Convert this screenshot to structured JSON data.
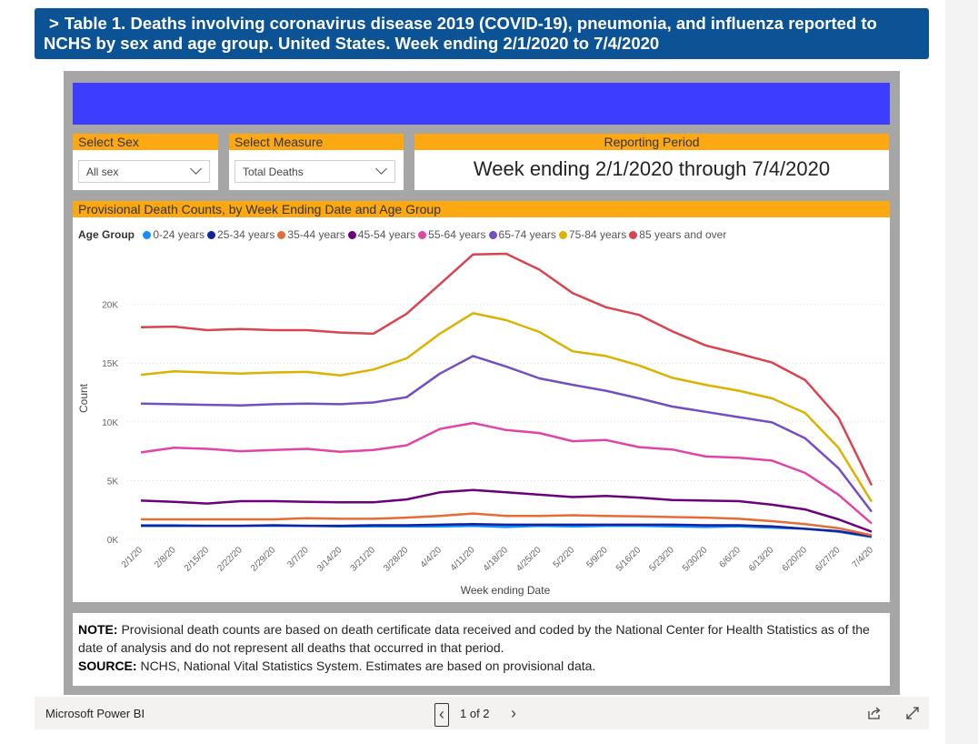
{
  "header": {
    "chevron": ">",
    "title": "Table 1. Deaths involving coronavirus disease 2019 (COVID-19), pneumonia, and influenza reported to NCHS by sex and age group. United States. Week ending 2/1/2020 to 7/4/2020"
  },
  "slicers": {
    "sex": {
      "label": "Select Sex",
      "value": "All sex"
    },
    "measure": {
      "label": "Select Measure",
      "value": "Total Deaths"
    },
    "period": {
      "label": "Reporting Period",
      "value": "Week ending 2/1/2020 through 7/4/2020"
    }
  },
  "chart_title": "Provisional Death Counts, by Week Ending Date and Age Group",
  "chart_data": {
    "type": "line",
    "title": "Provisional Death Counts, by Week Ending Date and Age Group",
    "legend_title": "Age Group",
    "xlabel": "Week ending Date",
    "ylabel": "Count",
    "ylim": [
      0,
      25000
    ],
    "yticks": [
      0,
      5000,
      10000,
      15000,
      20000
    ],
    "ytick_labels": [
      "0K",
      "5K",
      "10K",
      "15K",
      "20K"
    ],
    "x": [
      "2/1/20",
      "2/8/20",
      "2/15/20",
      "2/22/20",
      "2/29/20",
      "3/7/20",
      "3/14/20",
      "3/21/20",
      "3/28/20",
      "4/4/20",
      "4/11/20",
      "4/18/20",
      "4/25/20",
      "5/2/20",
      "5/9/20",
      "5/16/20",
      "5/23/20",
      "5/30/20",
      "6/6/20",
      "6/13/20",
      "6/20/20",
      "6/27/20",
      "7/4/20"
    ],
    "series": [
      {
        "name": "0-24 years",
        "color": "#118dff",
        "values": [
          1200,
          1200,
          1150,
          1150,
          1150,
          1150,
          1100,
          1100,
          1100,
          1100,
          1150,
          1050,
          1150,
          1100,
          1150,
          1150,
          1100,
          1050,
          1100,
          1000,
          900,
          650,
          200
        ]
      },
      {
        "name": "25-34 years",
        "color": "#12239e",
        "values": [
          1150,
          1150,
          1150,
          1150,
          1200,
          1150,
          1150,
          1200,
          1200,
          1250,
          1300,
          1250,
          1250,
          1250,
          1250,
          1250,
          1250,
          1200,
          1200,
          1100,
          900,
          700,
          250
        ]
      },
      {
        "name": "35-44 years",
        "color": "#e66c37",
        "values": [
          1700,
          1700,
          1700,
          1700,
          1700,
          1800,
          1750,
          1750,
          1850,
          2000,
          2200,
          2000,
          2000,
          2050,
          2000,
          1950,
          1900,
          1850,
          1750,
          1550,
          1300,
          950,
          350
        ]
      },
      {
        "name": "45-54 years",
        "color": "#6b007b",
        "values": [
          3300,
          3200,
          3050,
          3250,
          3250,
          3200,
          3150,
          3150,
          3400,
          4000,
          4200,
          4000,
          3800,
          3600,
          3700,
          3550,
          3350,
          3300,
          3250,
          2950,
          2550,
          1700,
          650
        ]
      },
      {
        "name": "55-64 years",
        "color": "#e044a7",
        "values": [
          7400,
          7800,
          7700,
          7500,
          7600,
          7700,
          7450,
          7600,
          8000,
          9400,
          9900,
          9300,
          9050,
          8350,
          8450,
          7850,
          7650,
          7050,
          6950,
          6700,
          5650,
          3800,
          1350
        ]
      },
      {
        "name": "65-74 years",
        "color": "#744ec2",
        "values": [
          11550,
          11500,
          11450,
          11400,
          11500,
          11550,
          11500,
          11650,
          12100,
          14100,
          15600,
          14700,
          13700,
          13150,
          12650,
          12000,
          11300,
          10850,
          10400,
          9950,
          8600,
          6050,
          2350
        ]
      },
      {
        "name": "75-84 years",
        "color": "#d9b300",
        "values": [
          14000,
          14300,
          14200,
          14100,
          14200,
          14250,
          13950,
          14450,
          15400,
          17500,
          19250,
          18650,
          17650,
          16000,
          15600,
          14800,
          13750,
          13150,
          12650,
          12000,
          10750,
          7800,
          3200
        ]
      },
      {
        "name": "85 years and over",
        "color": "#d64550",
        "values": [
          18050,
          18100,
          17800,
          17900,
          17800,
          17800,
          17600,
          17500,
          19200,
          21700,
          24250,
          24300,
          22950,
          20950,
          19750,
          19100,
          17700,
          16500,
          15800,
          15050,
          13550,
          10350,
          4600
        ]
      }
    ]
  },
  "note": {
    "note_label": "NOTE:",
    "note_text": "Provisional death counts are based on death certificate data received and coded by the National Center for Health Statistics as of the date of analysis and do not represent all deaths that occurred in that period.",
    "source_label": "SOURCE:",
    "source_text": "NCHS, National Vital Statistics System. Estimates are based on provisional data."
  },
  "footer": {
    "brand": "Microsoft Power BI",
    "page_indicator": "1 of 2",
    "prev": "‹",
    "next": "›"
  }
}
